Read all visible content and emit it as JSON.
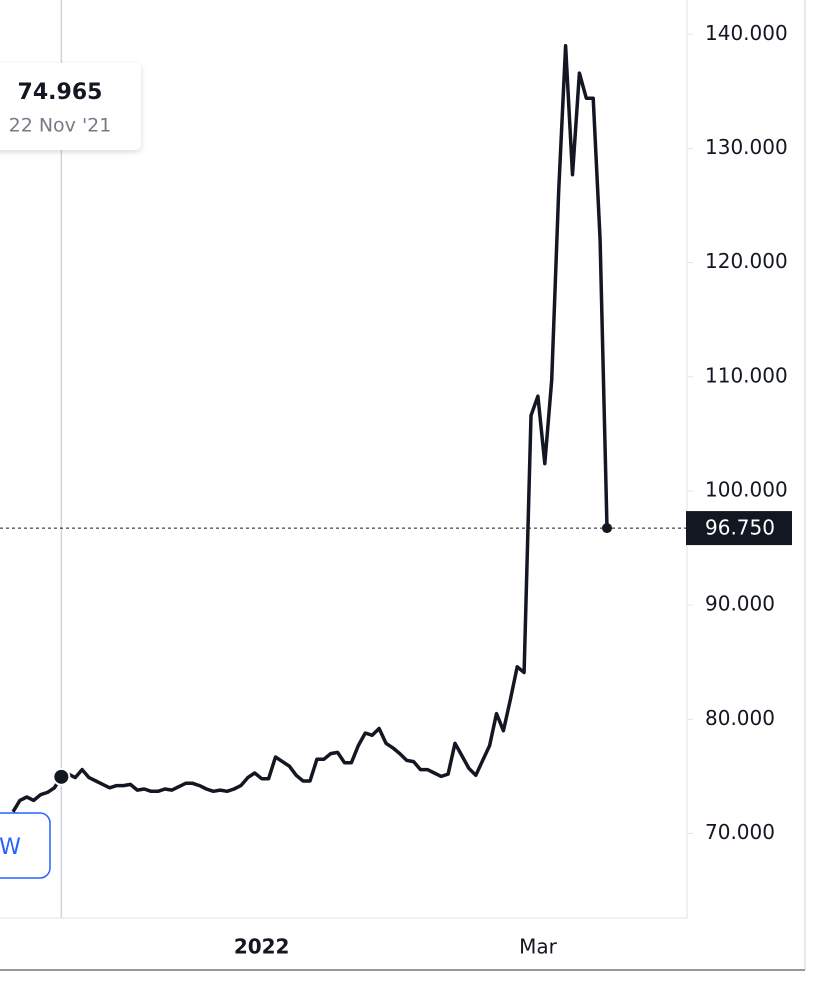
{
  "chart_data": {
    "type": "line",
    "categories": [
      null,
      null,
      null,
      null,
      null,
      null,
      null,
      null,
      null,
      null,
      null,
      null,
      null,
      null,
      null,
      null,
      null,
      null,
      null,
      null,
      null,
      null,
      null,
      null,
      null,
      null,
      null,
      null,
      null,
      null,
      null,
      null,
      null,
      null,
      null,
      null,
      "2022",
      null,
      null,
      null,
      null,
      null,
      null,
      null,
      null,
      null,
      null,
      null,
      null,
      null,
      null,
      null,
      null,
      null,
      null,
      null,
      null,
      null,
      null,
      null,
      null,
      null,
      null,
      null,
      null,
      null,
      null,
      null,
      null,
      null,
      null,
      null,
      null,
      null,
      null,
      null,
      "Mar",
      null,
      null,
      null,
      null,
      null,
      null,
      null,
      null,
      null,
      null
    ],
    "series": [
      {
        "color": "#131722",
        "values": [
          71.9,
          72.9,
          73.2,
          72.9,
          73.4,
          73.6,
          74.0,
          74.965,
          75.2,
          74.9,
          75.6,
          74.9,
          74.6,
          74.3,
          74.0,
          74.2,
          74.2,
          74.3,
          73.8,
          73.9,
          73.7,
          73.7,
          73.9,
          73.8,
          74.1,
          74.4,
          74.4,
          74.2,
          73.9,
          73.7,
          73.8,
          73.7,
          73.9,
          74.2,
          74.9,
          75.3,
          74.8,
          74.8,
          76.7,
          76.3,
          75.9,
          75.1,
          74.6,
          74.6,
          76.5,
          76.5,
          77.0,
          77.1,
          76.2,
          76.2,
          77.7,
          78.8,
          78.6,
          79.2,
          77.9,
          77.5,
          77.0,
          76.4,
          76.3,
          75.6,
          75.6,
          75.3,
          75.0,
          75.2,
          77.9,
          76.8,
          75.7,
          75.1,
          76.4,
          77.7,
          80.5,
          79.0,
          81.7,
          84.6,
          84.1,
          106.6,
          108.3,
          102.4,
          109.7,
          126.3,
          139.0,
          127.7,
          136.6,
          134.4,
          134.4,
          122.0,
          96.75
        ],
        "value_labels": [
          null,
          null,
          null,
          null,
          null,
          null,
          null,
          "74.965",
          null,
          null,
          null,
          null,
          null,
          null,
          null,
          null,
          null,
          null,
          null,
          null,
          null,
          null,
          null,
          null,
          null,
          null,
          null,
          null,
          null,
          null,
          null,
          null,
          null,
          null,
          null,
          null,
          null,
          null,
          null,
          null,
          null,
          null,
          null,
          null,
          null,
          null,
          null,
          null,
          null,
          null,
          null,
          null,
          null,
          null,
          null,
          null,
          null,
          null,
          null,
          null,
          null,
          null,
          null,
          null,
          null,
          null,
          null,
          null,
          null,
          null,
          null,
          null,
          null,
          null,
          null,
          null,
          null,
          null,
          null,
          null,
          null,
          null,
          null,
          null,
          null,
          null,
          "96.750"
        ]
      }
    ],
    "tooltip_date": "22 Nov '21",
    "ylim": [
      62.6,
      143
    ],
    "yticks": [
      {
        "value": 70,
        "label": "70.000"
      },
      {
        "value": 80,
        "label": "80.000"
      },
      {
        "value": 90,
        "label": "90.000"
      },
      {
        "value": 100,
        "label": "100.000"
      },
      {
        "value": 110,
        "label": "110.000"
      },
      {
        "value": 120,
        "label": "120.000"
      },
      {
        "value": 130,
        "label": "130.000"
      },
      {
        "value": 140,
        "label": "140.000"
      }
    ],
    "grid": false,
    "controls": [
      "W"
    ]
  }
}
